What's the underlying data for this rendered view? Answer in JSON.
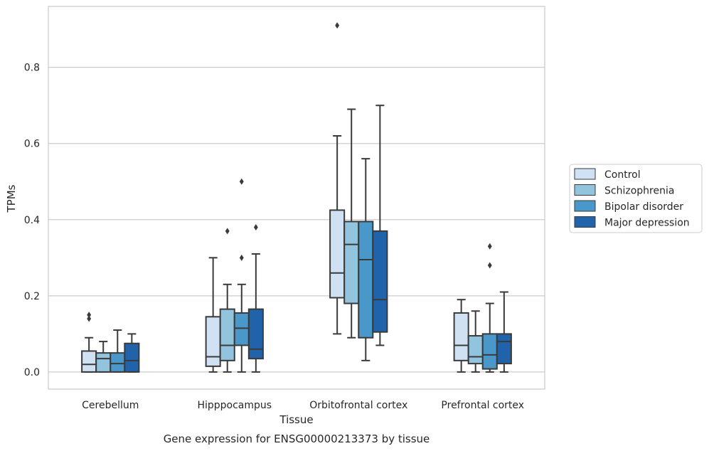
{
  "chart_data": {
    "type": "box",
    "caption": "Gene expression for ENSG00000213373 by tissue",
    "xlabel": "Tissue",
    "ylabel": "TPMs",
    "ylim": [
      -0.045,
      0.96
    ],
    "yticks": [
      0.0,
      0.2,
      0.4,
      0.6,
      0.8
    ],
    "ytick_labels": [
      "0.0",
      "0.2",
      "0.4",
      "0.6",
      "0.8"
    ],
    "grid": true,
    "legend_position": "right",
    "categories": [
      "Cerebellum",
      "Hipppocampus",
      "Orbitofrontal cortex",
      "Prefrontal cortex"
    ],
    "series": [
      {
        "name": "Control",
        "color": "#cfe1f2",
        "boxes": [
          {
            "whisker_low": 0.0,
            "q1": 0.0,
            "median": 0.02,
            "q3": 0.055,
            "whisker_high": 0.09,
            "outliers": [
              0.14,
              0.15
            ]
          },
          {
            "whisker_low": 0.0,
            "q1": 0.015,
            "median": 0.04,
            "q3": 0.145,
            "whisker_high": 0.3,
            "outliers": []
          },
          {
            "whisker_low": 0.1,
            "q1": 0.195,
            "median": 0.26,
            "q3": 0.425,
            "whisker_high": 0.62,
            "outliers": [
              0.91
            ]
          },
          {
            "whisker_low": 0.0,
            "q1": 0.03,
            "median": 0.07,
            "q3": 0.155,
            "whisker_high": 0.19,
            "outliers": []
          }
        ]
      },
      {
        "name": "Schizophrenia",
        "color": "#93c4de",
        "boxes": [
          {
            "whisker_low": 0.0,
            "q1": 0.0,
            "median": 0.035,
            "q3": 0.05,
            "whisker_high": 0.08,
            "outliers": []
          },
          {
            "whisker_low": 0.0,
            "q1": 0.03,
            "median": 0.07,
            "q3": 0.165,
            "whisker_high": 0.23,
            "outliers": [
              0.37
            ]
          },
          {
            "whisker_low": 0.09,
            "q1": 0.18,
            "median": 0.335,
            "q3": 0.395,
            "whisker_high": 0.69,
            "outliers": []
          },
          {
            "whisker_low": 0.0,
            "q1": 0.022,
            "median": 0.04,
            "q3": 0.095,
            "whisker_high": 0.16,
            "outliers": []
          }
        ]
      },
      {
        "name": "Bipolar disorder",
        "color": "#4a98c9",
        "boxes": [
          {
            "whisker_low": 0.0,
            "q1": 0.0,
            "median": 0.022,
            "q3": 0.05,
            "whisker_high": 0.11,
            "outliers": []
          },
          {
            "whisker_low": 0.0,
            "q1": 0.07,
            "median": 0.115,
            "q3": 0.155,
            "whisker_high": 0.23,
            "outliers": [
              0.3,
              0.5
            ]
          },
          {
            "whisker_low": 0.03,
            "q1": 0.09,
            "median": 0.295,
            "q3": 0.395,
            "whisker_high": 0.56,
            "outliers": []
          },
          {
            "whisker_low": 0.0,
            "q1": 0.008,
            "median": 0.045,
            "q3": 0.1,
            "whisker_high": 0.18,
            "outliers": [
              0.28,
              0.33
            ]
          }
        ]
      },
      {
        "name": "Major depression",
        "color": "#2163aa",
        "boxes": [
          {
            "whisker_low": 0.0,
            "q1": 0.0,
            "median": 0.03,
            "q3": 0.075,
            "whisker_high": 0.1,
            "outliers": []
          },
          {
            "whisker_low": 0.0,
            "q1": 0.035,
            "median": 0.06,
            "q3": 0.165,
            "whisker_high": 0.31,
            "outliers": [
              0.38
            ]
          },
          {
            "whisker_low": 0.07,
            "q1": 0.105,
            "median": 0.19,
            "q3": 0.37,
            "whisker_high": 0.7,
            "outliers": []
          },
          {
            "whisker_low": 0.0,
            "q1": 0.022,
            "median": 0.08,
            "q3": 0.1,
            "whisker_high": 0.21,
            "outliers": []
          }
        ]
      }
    ]
  }
}
